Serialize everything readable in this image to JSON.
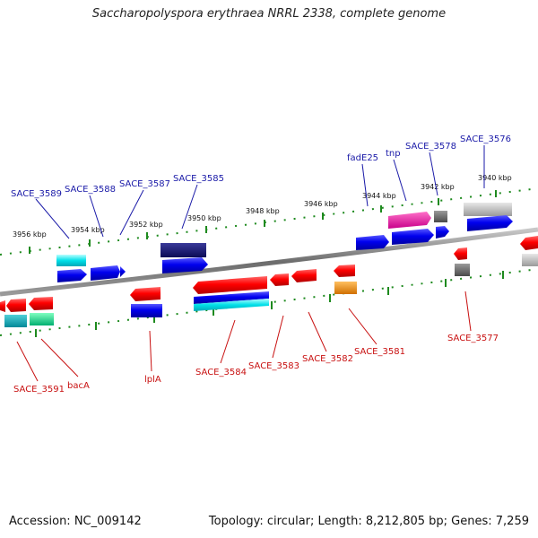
{
  "title": "Saccharopolyspora erythraea NRRL 2338, complete genome",
  "footer": {
    "accession": "Accession: NC_009142",
    "topology": "Topology: circular; Length: 8,212,805 bp; Genes: 7,259"
  },
  "colors": {
    "backbone": "#808080",
    "tick": "#1e8a1e",
    "label_upper": "#1a1aa8",
    "label_lower": "#c81010"
  },
  "scale_labels": [
    "3956 kbp",
    "3954 kbp",
    "3952 kbp",
    "3950 kbp",
    "3948 kbp",
    "3946 kbp",
    "3944 kbp",
    "3942 kbp",
    "3940 kbp"
  ],
  "upper_labels": [
    "SACE_3589",
    "SACE_3588",
    "SACE_3587",
    "SACE_3585",
    "fadE25",
    "tnp",
    "SACE_3578",
    "SACE_3576"
  ],
  "lower_labels": [
    "SACE_3591",
    "bacA",
    "lplA",
    "SACE_3584",
    "SACE_3583",
    "SACE_3582",
    "SACE_3581",
    "SACE_3577"
  ]
}
